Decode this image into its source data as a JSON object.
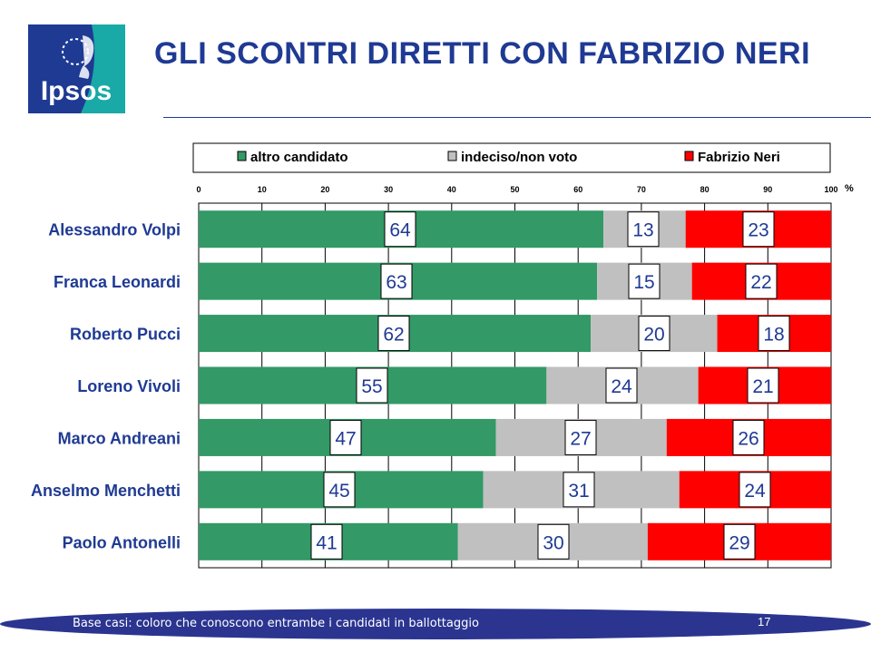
{
  "header": {
    "title": "GLI SCONTRI DIRETTI CON FABRIZIO NERI",
    "logo_text": "Ipsos"
  },
  "footer": {
    "note": "Base casi: coloro che conoscono entrambe i candidati in ballottaggio",
    "page_number": "17"
  },
  "chart_data": {
    "type": "bar",
    "orientation": "horizontal",
    "stacked": true,
    "categories": [
      "Alessandro Volpi",
      "Franca Leonardi",
      "Roberto Pucci",
      "Loreno Vivoli",
      "Marco Andreani",
      "Anselmo Menchetti",
      "Paolo Antonelli"
    ],
    "series": [
      {
        "name": "altro candidato",
        "color": "#339966",
        "values": [
          64,
          63,
          62,
          55,
          47,
          45,
          41
        ]
      },
      {
        "name": "indeciso/non voto",
        "color": "#c0c0c0",
        "values": [
          13,
          15,
          20,
          24,
          27,
          31,
          30
        ]
      },
      {
        "name": "Fabrizio Neri",
        "color": "#ff0000",
        "values": [
          23,
          22,
          18,
          21,
          26,
          24,
          29
        ]
      }
    ],
    "xlim": [
      0,
      100
    ],
    "xticks": [
      "0",
      "10",
      "20",
      "30",
      "40",
      "50",
      "60",
      "70",
      "80",
      "90",
      "100"
    ],
    "xunit": "%",
    "grid": true,
    "legend": "top"
  }
}
